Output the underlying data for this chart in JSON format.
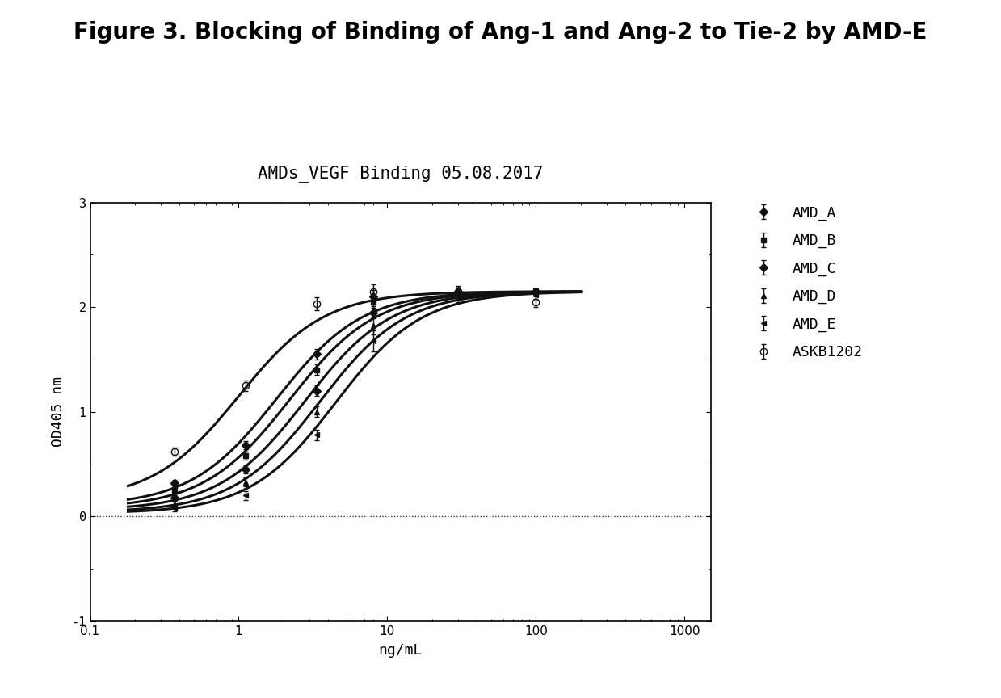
{
  "title": "Figure 3. Blocking of Binding of Ang-1 and Ang-2 to Tie-2 by AMD-E",
  "subtitle": "AMDs_VEGF Binding 05.08.2017",
  "xlabel": "ng/mL",
  "ylabel": "OD405 nm",
  "ylim": [
    -1,
    3
  ],
  "yticks": [
    -1,
    0,
    1,
    2,
    3
  ],
  "xtick_positions": [
    0.1,
    1,
    10,
    100,
    1000
  ],
  "xtick_labels": [
    "0.1",
    "1",
    "10",
    "100",
    "1000"
  ],
  "series": [
    {
      "name": "AMD_A",
      "marker": "D",
      "markersize": 5,
      "ec50": 1.8,
      "hill": 1.5,
      "ymin": 0.1,
      "ymax": 2.15,
      "x_data": [
        0.37,
        1.11,
        3.33,
        8.0,
        30.0,
        100.0
      ],
      "y_data": [
        0.32,
        0.68,
        1.55,
        2.1,
        2.15,
        2.15
      ],
      "yerr_low": [
        0.03,
        0.04,
        0.05,
        0.06,
        0.04,
        0.03
      ],
      "yerr_high": [
        0.03,
        0.04,
        0.05,
        0.06,
        0.04,
        0.03
      ]
    },
    {
      "name": "AMD_B",
      "marker": "s",
      "markersize": 5,
      "ec50": 2.2,
      "hill": 1.5,
      "ymin": 0.08,
      "ymax": 2.15,
      "x_data": [
        0.37,
        1.11,
        3.33,
        8.0,
        30.0,
        100.0
      ],
      "y_data": [
        0.25,
        0.58,
        1.4,
        2.05,
        2.15,
        2.15
      ],
      "yerr_low": [
        0.03,
        0.04,
        0.05,
        0.06,
        0.04,
        0.03
      ],
      "yerr_high": [
        0.03,
        0.04,
        0.05,
        0.06,
        0.04,
        0.03
      ]
    },
    {
      "name": "AMD_C",
      "marker": "D",
      "markersize": 5,
      "ec50": 2.8,
      "hill": 1.5,
      "ymin": 0.06,
      "ymax": 2.15,
      "x_data": [
        0.37,
        1.11,
        3.33,
        8.0,
        30.0,
        100.0
      ],
      "y_data": [
        0.18,
        0.45,
        1.2,
        1.95,
        2.15,
        2.15
      ],
      "yerr_low": [
        0.03,
        0.04,
        0.05,
        0.06,
        0.04,
        0.03
      ],
      "yerr_high": [
        0.03,
        0.04,
        0.05,
        0.06,
        0.04,
        0.03
      ]
    },
    {
      "name": "AMD_D",
      "marker": "^",
      "markersize": 5,
      "ec50": 3.5,
      "hill": 1.5,
      "ymin": 0.04,
      "ymax": 2.15,
      "x_data": [
        0.37,
        1.11,
        3.33,
        8.0,
        30.0,
        100.0
      ],
      "y_data": [
        0.12,
        0.33,
        1.0,
        1.82,
        2.15,
        2.15
      ],
      "yerr_low": [
        0.03,
        0.04,
        0.05,
        0.08,
        0.04,
        0.03
      ],
      "yerr_high": [
        0.03,
        0.04,
        0.05,
        0.08,
        0.04,
        0.03
      ]
    },
    {
      "name": "AMD_E",
      "marker": "<",
      "markersize": 5,
      "ec50": 4.5,
      "hill": 1.5,
      "ymin": 0.03,
      "ymax": 2.15,
      "x_data": [
        0.37,
        1.11,
        3.33,
        8.0,
        30.0,
        100.0
      ],
      "y_data": [
        0.08,
        0.2,
        0.78,
        1.68,
        2.1,
        2.12
      ],
      "yerr_low": [
        0.03,
        0.04,
        0.05,
        0.1,
        0.05,
        0.04
      ],
      "yerr_high": [
        0.03,
        0.04,
        0.05,
        0.1,
        0.05,
        0.04
      ]
    },
    {
      "name": "ASKB1202",
      "marker": "o",
      "markersize": 6,
      "mfc": "none",
      "ec50": 1.0,
      "hill": 1.5,
      "ymin": 0.15,
      "ymax": 2.15,
      "x_data": [
        0.37,
        1.11,
        3.33,
        8.0,
        30.0,
        100.0
      ],
      "y_data": [
        0.62,
        1.25,
        2.03,
        2.15,
        2.15,
        2.05
      ],
      "yerr_low": [
        0.04,
        0.05,
        0.06,
        0.07,
        0.05,
        0.05
      ],
      "yerr_high": [
        0.04,
        0.05,
        0.06,
        0.07,
        0.05,
        0.05
      ]
    }
  ],
  "background_color": "#ffffff",
  "title_fontsize": 20,
  "subtitle_fontsize": 15,
  "axis_label_fontsize": 13,
  "tick_fontsize": 11,
  "legend_fontsize": 13,
  "line_color": "#111111",
  "line_width": 2.2,
  "hline_color": "#333333",
  "hline_style": ":"
}
